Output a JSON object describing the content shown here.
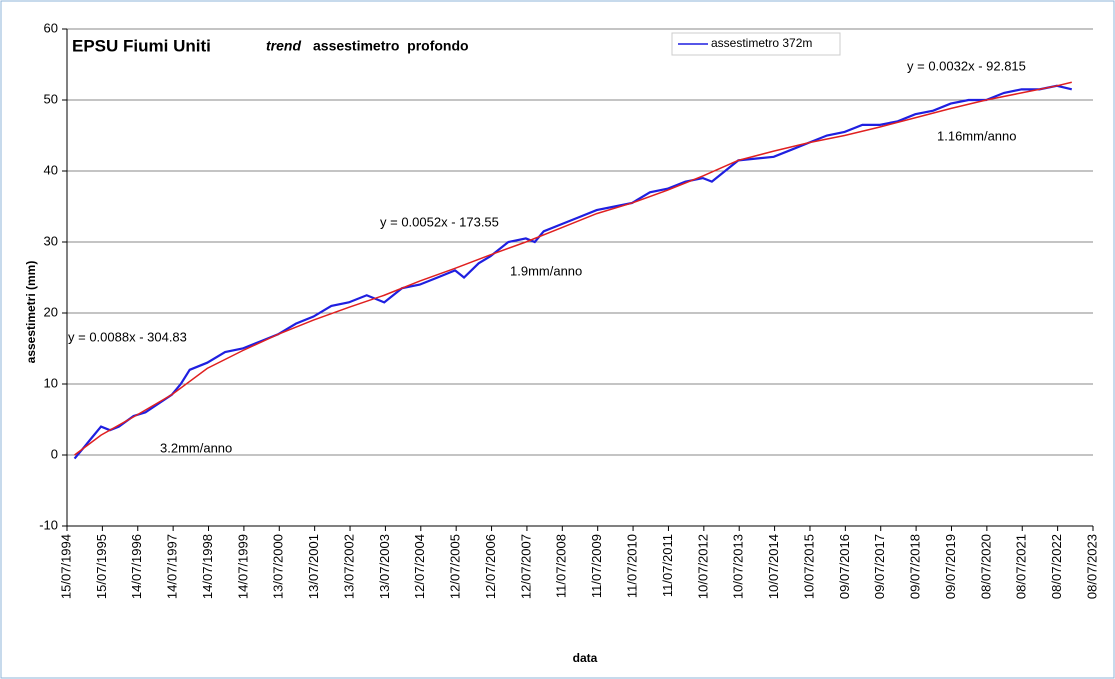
{
  "chart_data": {
    "type": "line",
    "title": "EPSU Fiumi Uniti",
    "subtitle": [
      "trend",
      "assestimetro  profondo"
    ],
    "xlabel": "data",
    "ylabel": "assestimetri (mm)",
    "ylim": [
      -10,
      60
    ],
    "yticks": [
      -10,
      0,
      10,
      20,
      30,
      40,
      50,
      60
    ],
    "grid": true,
    "xlim": [
      "1994-07-15",
      "2023-07-08"
    ],
    "xticks": [
      {
        "value": "1994-07-15",
        "label": "15/07/1994"
      },
      {
        "value": "1995-07-15",
        "label": "15/07/1995"
      },
      {
        "value": "1996-07-14",
        "label": "14/07/1996"
      },
      {
        "value": "1997-07-14",
        "label": "14/07/1997"
      },
      {
        "value": "1998-07-14",
        "label": "14/07/1998"
      },
      {
        "value": "1999-07-14",
        "label": "14/07/1999"
      },
      {
        "value": "2000-07-13",
        "label": "13/07/2000"
      },
      {
        "value": "2001-07-13",
        "label": "13/07/2001"
      },
      {
        "value": "2002-07-13",
        "label": "13/07/2002"
      },
      {
        "value": "2003-07-13",
        "label": "13/07/2003"
      },
      {
        "value": "2004-07-12",
        "label": "12/07/2004"
      },
      {
        "value": "2005-07-12",
        "label": "12/07/2005"
      },
      {
        "value": "2006-07-12",
        "label": "12/07/2006"
      },
      {
        "value": "2007-07-12",
        "label": "12/07/2007"
      },
      {
        "value": "2008-07-11",
        "label": "11/07/2008"
      },
      {
        "value": "2009-07-11",
        "label": "11/07/2009"
      },
      {
        "value": "2010-07-11",
        "label": "11/07/2010"
      },
      {
        "value": "2011-07-11",
        "label": "11/07/2011"
      },
      {
        "value": "2012-07-10",
        "label": "10/07/2012"
      },
      {
        "value": "2013-07-10",
        "label": "10/07/2013"
      },
      {
        "value": "2014-07-10",
        "label": "10/07/2014"
      },
      {
        "value": "2015-07-10",
        "label": "10/07/2015"
      },
      {
        "value": "2016-07-09",
        "label": "09/07/2016"
      },
      {
        "value": "2017-07-09",
        "label": "09/07/2017"
      },
      {
        "value": "2018-07-09",
        "label": "09/07/2018"
      },
      {
        "value": "2019-07-09",
        "label": "09/07/2019"
      },
      {
        "value": "2020-07-08",
        "label": "08/07/2020"
      },
      {
        "value": "2021-07-08",
        "label": "08/07/2021"
      },
      {
        "value": "2022-07-08",
        "label": "08/07/2022"
      },
      {
        "value": "2023-07-08",
        "label": "08/07/2023"
      }
    ],
    "legend": "top",
    "series": [
      {
        "name": "assestimetro 372m",
        "color": "#1f1fe0",
        "x": [
          "1994-10-01",
          "1995-01-01",
          "1995-04-01",
          "1995-07-01",
          "1995-10-01",
          "1996-01-01",
          "1996-06-01",
          "1996-10-01",
          "1997-07-01",
          "1997-10-01",
          "1998-01-01",
          "1998-07-01",
          "1999-01-01",
          "1999-07-01",
          "2000-01-01",
          "2000-07-01",
          "2001-01-01",
          "2001-07-01",
          "2002-01-01",
          "2002-07-01",
          "2003-01-01",
          "2003-07-01",
          "2004-01-01",
          "2004-07-01",
          "2005-01-01",
          "2005-07-01",
          "2005-10-01",
          "2006-03-01",
          "2006-07-01",
          "2007-01-01",
          "2007-07-01",
          "2007-10-01",
          "2008-01-01",
          "2008-07-01",
          "2009-01-01",
          "2009-07-01",
          "2010-01-01",
          "2010-07-01",
          "2011-01-01",
          "2011-07-01",
          "2012-01-01",
          "2012-07-01",
          "2012-10-01",
          "2013-07-01",
          "2014-07-01",
          "2015-01-01",
          "2015-07-01",
          "2016-01-01",
          "2016-07-01",
          "2017-01-01",
          "2017-07-01",
          "2018-01-01",
          "2018-07-01",
          "2019-01-01",
          "2019-07-01",
          "2020-01-01",
          "2020-07-01",
          "2021-01-01",
          "2021-07-01",
          "2022-01-01",
          "2022-07-01",
          "2022-12-01"
        ],
        "values": [
          -0.5,
          1,
          2.5,
          4,
          3.5,
          4,
          5.5,
          6,
          8.5,
          10,
          12,
          13,
          14.5,
          15,
          16,
          17,
          18.5,
          19.5,
          21,
          21.5,
          22.5,
          21.5,
          23.5,
          24,
          25,
          26,
          25,
          27,
          28,
          30,
          30.5,
          30,
          31.5,
          32.5,
          33.5,
          34.5,
          35,
          35.5,
          37,
          37.5,
          38.5,
          39,
          38.5,
          41.5,
          42,
          43,
          44,
          45,
          45.5,
          46.5,
          46.5,
          47,
          48,
          48.5,
          49.5,
          50,
          50,
          51,
          51.5,
          51.5,
          52,
          51.5
        ]
      },
      {
        "color": "#e02020",
        "x": [
          "1994-10-01",
          "1995-07-01",
          "1996-07-01",
          "1997-07-01",
          "1998-07-01",
          "1999-07-01",
          "2000-07-01",
          "2001-07-01",
          "2002-07-01",
          "2003-07-01",
          "2004-07-01",
          "2005-07-01",
          "2006-07-01",
          "2007-07-01",
          "2008-07-01",
          "2009-07-01",
          "2010-07-01",
          "2011-07-01",
          "2012-07-01",
          "2013-07-01",
          "2014-07-01",
          "2015-07-01",
          "2016-07-01",
          "2017-07-01",
          "2018-07-01",
          "2019-07-01",
          "2020-07-01",
          "2021-07-01",
          "2022-07-01",
          "2022-12-01"
        ],
        "values": [
          0,
          2.8,
          5.6,
          8.5,
          12.2,
          14.7,
          17,
          19,
          20.8,
          22.5,
          24.5,
          26.3,
          28.2,
          30,
          32,
          34,
          35.5,
          37.3,
          39.3,
          41.5,
          42.8,
          44,
          45,
          46.2,
          47.5,
          48.8,
          50,
          51,
          52,
          52.5
        ]
      }
    ],
    "annotations": [
      "y = 0.0088x - 304.83",
      "3.2mm/anno",
      "y = 0.0052x - 173.55",
      "1.9mm/anno",
      "y = 0.0032x - 92.815",
      "1.16mm/anno"
    ]
  }
}
